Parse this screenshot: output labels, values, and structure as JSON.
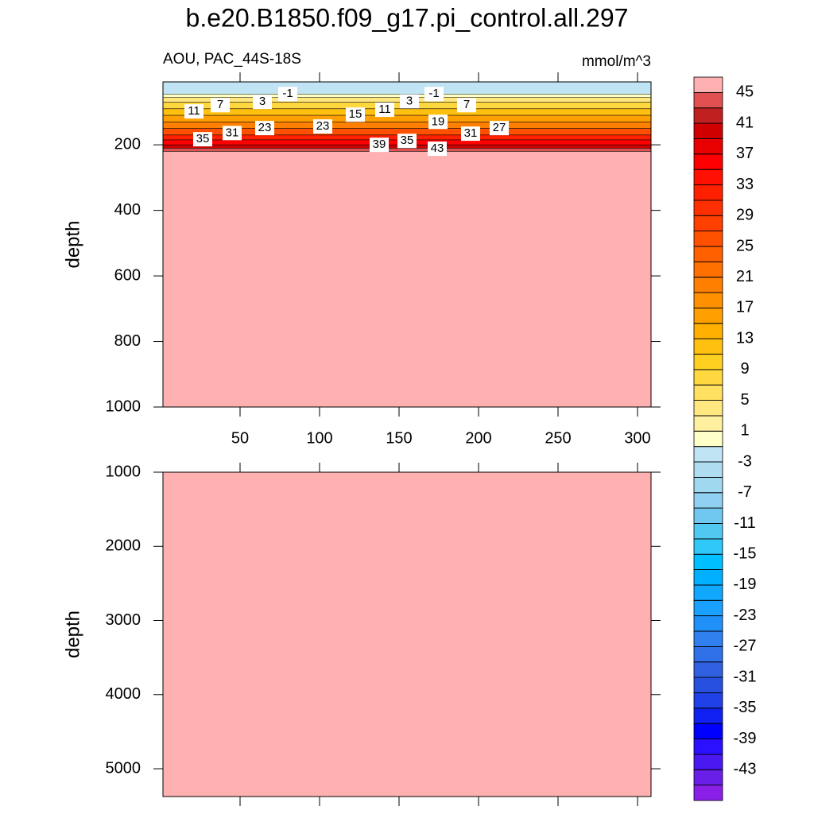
{
  "chart_data": {
    "type": "contour",
    "title": "b.e20.B1850.f09_g17.pi_control.all.297",
    "subtitle_left": "AOU, PAC_44S-18S",
    "subtitle_right": "mmol/m^3",
    "levels": [
      -45,
      -43,
      -41,
      -39,
      -37,
      -35,
      -33,
      -31,
      -29,
      -27,
      -25,
      -23,
      -21,
      -19,
      -17,
      -15,
      -13,
      -11,
      -9,
      -7,
      -5,
      -3,
      -1,
      1,
      3,
      5,
      7,
      9,
      11,
      13,
      15,
      17,
      19,
      21,
      23,
      25,
      27,
      29,
      31,
      33,
      35,
      37,
      39,
      41,
      43,
      45
    ],
    "colors": [
      "#8a20e8",
      "#6a1fe8",
      "#4a18f0",
      "#2a10ff",
      "#0000ff",
      "#1020f0",
      "#2040e8",
      "#2850e0",
      "#3060e0",
      "#3070e8",
      "#3080f0",
      "#2090f8",
      "#1aa0ff",
      "#10a8ff",
      "#00b0ff",
      "#00c0ff",
      "#30c8f8",
      "#50c8f0",
      "#70c8f0",
      "#90d0f0",
      "#a0d8f0",
      "#b0dcf0",
      "#c0e4f4",
      "#ffffc8",
      "#fff0a0",
      "#ffe880",
      "#ffe060",
      "#ffd840",
      "#ffd020",
      "#ffc010",
      "#ffb000",
      "#ffa000",
      "#ff9000",
      "#ff8000",
      "#ff7000",
      "#ff6000",
      "#ff5000",
      "#ff4000",
      "#ff3000",
      "#ff2000",
      "#ff1000",
      "#ff0000",
      "#e80000",
      "#d00000",
      "#c02020",
      "#e05050",
      "#ffb0b0"
    ],
    "colorbar_ticks": [
      45,
      41,
      37,
      33,
      29,
      25,
      21,
      17,
      13,
      9,
      5,
      1,
      -3,
      -7,
      -11,
      -15,
      -19,
      -23,
      -27,
      -31,
      -35,
      -39,
      -43
    ],
    "panels": [
      {
        "ylabel": "depth",
        "xlim": [
          1.5,
          308.5
        ],
        "ylim": [
          1000,
          8
        ],
        "xticks": [
          50,
          100,
          150,
          200,
          250,
          300
        ],
        "xtick_labels": true,
        "yticks": [
          200,
          400,
          600,
          800,
          1000
        ],
        "profile": {
          "depths": [
            8,
            45,
            55,
            70,
            90,
            110,
            130,
            150,
            170,
            185,
            200,
            210,
            220
          ],
          "values": [
            -2,
            0,
            4,
            8,
            12,
            16,
            20,
            26,
            32,
            36,
            40,
            44,
            46
          ]
        },
        "contour_labels": [
          {
            "x": 21,
            "depth": 98,
            "value": 11
          },
          {
            "x": 37.5,
            "depth": 79,
            "value": 7
          },
          {
            "x": 64,
            "depth": 69,
            "value": 3
          },
          {
            "x": 80,
            "depth": 45,
            "value": -1
          },
          {
            "x": 26.5,
            "depth": 183,
            "value": 35
          },
          {
            "x": 45,
            "depth": 164,
            "value": 31
          },
          {
            "x": 65.5,
            "depth": 149,
            "value": 23
          },
          {
            "x": 102,
            "depth": 144,
            "value": 23
          },
          {
            "x": 122.5,
            "depth": 108,
            "value": 15
          },
          {
            "x": 141,
            "depth": 93,
            "value": 11
          },
          {
            "x": 156.5,
            "depth": 67,
            "value": 3
          },
          {
            "x": 172,
            "depth": 45,
            "value": -1
          },
          {
            "x": 192.5,
            "depth": 79,
            "value": 7
          },
          {
            "x": 174.5,
            "depth": 130,
            "value": 19
          },
          {
            "x": 137.5,
            "depth": 200,
            "value": 39
          },
          {
            "x": 155,
            "depth": 188,
            "value": 35
          },
          {
            "x": 174,
            "depth": 212,
            "value": 43
          },
          {
            "x": 195,
            "depth": 166,
            "value": 31
          },
          {
            "x": 213,
            "depth": 149,
            "value": 27
          }
        ]
      },
      {
        "ylabel": "depth",
        "xlim": [
          1.5,
          308.5
        ],
        "ylim": [
          5375,
          1000
        ],
        "xticks": [
          50,
          100,
          150,
          200,
          250,
          300
        ],
        "xtick_labels": false,
        "yticks": [
          1000,
          2000,
          3000,
          4000,
          5000
        ],
        "profile": {
          "depths": [
            1000
          ],
          "values": [
            46
          ]
        },
        "contour_labels": []
      }
    ]
  }
}
